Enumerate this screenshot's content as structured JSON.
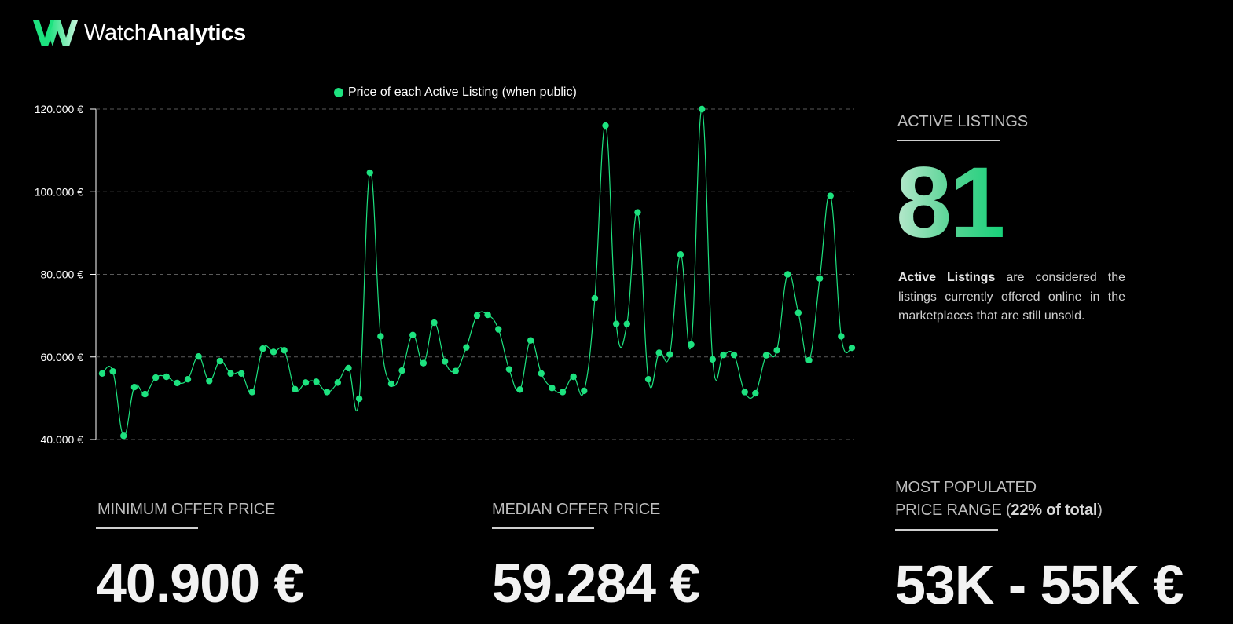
{
  "brand": {
    "name_light": "Watch",
    "name_bold": "Analytics",
    "accent_color": "#1de27f"
  },
  "chart_data": {
    "type": "line",
    "legend": "Price of each Active Listing (when public)",
    "series": [
      {
        "name": "Price of each Active Listing (when public)",
        "values": [
          56000,
          56500,
          40900,
          52700,
          51000,
          55000,
          55200,
          53700,
          54600,
          60100,
          54200,
          59000,
          56000,
          56000,
          51500,
          62000,
          61200,
          61600,
          52200,
          53800,
          54000,
          51500,
          53800,
          57300,
          49900,
          104600,
          65000,
          53500,
          56700,
          65300,
          58500,
          68300,
          58900,
          56600,
          62300,
          70000,
          70200,
          66700,
          57000,
          52100,
          64000,
          56000,
          52500,
          51500,
          55200,
          51800,
          74200,
          116000,
          68000,
          68000,
          95000,
          54600,
          61000,
          60600,
          84800,
          63000,
          120000,
          59400,
          60500,
          60500,
          51500,
          51200,
          60400,
          61600,
          80000,
          70700,
          59200,
          79000,
          99000,
          65000,
          62200
        ]
      }
    ],
    "ylim": [
      40000,
      120000
    ],
    "yticks": [
      40000,
      60000,
      80000,
      100000,
      120000
    ],
    "ytick_labels": [
      "40.000 €",
      "60.000 €",
      "80.000 €",
      "100.000 €",
      "120.000 €"
    ],
    "grid": true,
    "legend_position": "top-center",
    "color": "#1de27f"
  },
  "active": {
    "label": "ACTIVE LISTINGS",
    "count": "81",
    "desc_bold": "Active Listings",
    "desc_rest": " are considered the listings currently offered online in the marketplaces that are still unsold."
  },
  "stats": {
    "min": {
      "label": "MINIMUM OFFER PRICE",
      "value": "40.900 €"
    },
    "median": {
      "label": "MEDIAN OFFER PRICE",
      "value": "59.284 €"
    },
    "range": {
      "label_line1": "MOST POPULATED",
      "label_line2": "PRICE RANGE (",
      "label_pct": "22% of total",
      "label_close": ")",
      "value": "53K - 55K €"
    }
  }
}
